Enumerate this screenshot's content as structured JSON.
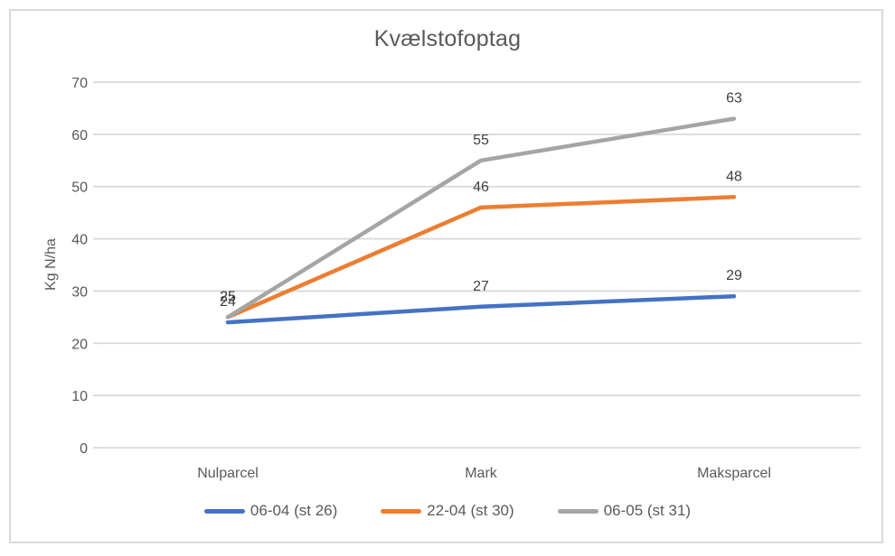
{
  "chart": {
    "title": "Kvælstofoptag",
    "y_axis_title": "Kg N/ha"
  },
  "chart_data": {
    "type": "line",
    "title": "Kvælstofoptag",
    "xlabel": "",
    "ylabel": "Kg N/ha",
    "categories": [
      "Nulparcel",
      "Mark",
      "Maksparcel"
    ],
    "series": [
      {
        "name": "06-04 (st 26)",
        "color": "#4472C4",
        "values": [
          24,
          27,
          29
        ]
      },
      {
        "name": "22-04 (st 30)",
        "color": "#ED7D31",
        "values": [
          25,
          46,
          48
        ]
      },
      {
        "name": "06-05 (st 31)",
        "color": "#A5A5A5",
        "values": [
          25,
          55,
          63
        ]
      }
    ],
    "ylim": [
      0,
      70
    ],
    "ytick_step": 10,
    "yticks": [
      0,
      10,
      20,
      30,
      40,
      50,
      60,
      70
    ],
    "grid": true,
    "data_labels": true,
    "legend_position": "bottom"
  },
  "colors": {
    "gridline": "#D9D9D9",
    "axis_line": "#D9D9D9",
    "tick_mark": "#D9D9D9",
    "tick_label": "#595959",
    "category_label": "#595959",
    "data_label": "#404040",
    "title": "#595959",
    "border": "#D9D9D9"
  }
}
